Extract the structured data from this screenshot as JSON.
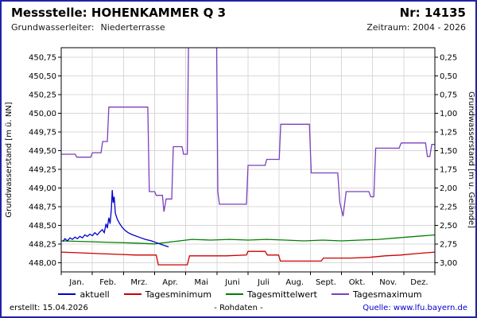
{
  "header": {
    "title": "Messstelle: HOHENKAMMER Q 3",
    "number": "Nr: 14135",
    "aquifer_label": "Grundwasserleiter:",
    "aquifer_value": "Niederterrasse",
    "period": "Zeitraum: 2004 - 2026"
  },
  "footer": {
    "created": "erstellt: 15.04.2026",
    "center": "- Rohdaten -",
    "source": "Quelle: www.lfu.bayern.de"
  },
  "chart_data": {
    "type": "line",
    "title": "Messstelle: HOHENKAMMER Q 3",
    "xlabel": "",
    "ylabel_left": "Grundwasserstand [m ü. NN]",
    "ylabel_right": "Grundwasserstand [m u. Gelände]",
    "x_tick_labels": [
      "Jan.",
      "Feb.",
      "Mrz.",
      "Apr.",
      "Mai",
      "Juni",
      "Juli",
      "Aug.",
      "Sept.",
      "Okt.",
      "Nov.",
      "Dez."
    ],
    "xlim": [
      0,
      12
    ],
    "ylim_left": [
      447.875,
      450.875
    ],
    "yticks_left": [
      448.0,
      448.25,
      448.5,
      448.75,
      449.0,
      449.25,
      449.5,
      449.75,
      450.0,
      450.25,
      450.5,
      450.75
    ],
    "ground_level_m": 451.0,
    "grid": true,
    "legend_position": "bottom",
    "colors": {
      "grid": "#d8d8d8",
      "plot_border": "#000000",
      "frame": "#2222aa",
      "link": "#0000cc"
    },
    "series": [
      {
        "name": "aktuell",
        "color": "#0000cc",
        "points": [
          [
            0.05,
            448.28
          ],
          [
            0.12,
            448.32
          ],
          [
            0.2,
            448.29
          ],
          [
            0.28,
            448.33
          ],
          [
            0.36,
            448.31
          ],
          [
            0.44,
            448.34
          ],
          [
            0.52,
            448.32
          ],
          [
            0.6,
            448.35
          ],
          [
            0.68,
            448.33
          ],
          [
            0.76,
            448.37
          ],
          [
            0.84,
            448.35
          ],
          [
            0.92,
            448.38
          ],
          [
            1.0,
            448.36
          ],
          [
            1.08,
            448.4
          ],
          [
            1.16,
            448.37
          ],
          [
            1.24,
            448.41
          ],
          [
            1.32,
            448.44
          ],
          [
            1.38,
            448.4
          ],
          [
            1.44,
            448.52
          ],
          [
            1.48,
            448.46
          ],
          [
            1.53,
            448.6
          ],
          [
            1.57,
            448.52
          ],
          [
            1.61,
            448.72
          ],
          [
            1.64,
            448.97
          ],
          [
            1.67,
            448.8
          ],
          [
            1.7,
            448.88
          ],
          [
            1.74,
            448.66
          ],
          [
            1.8,
            448.58
          ],
          [
            1.88,
            448.52
          ],
          [
            1.96,
            448.47
          ],
          [
            2.05,
            448.43
          ],
          [
            2.15,
            448.4
          ],
          [
            2.3,
            448.37
          ],
          [
            2.5,
            448.34
          ],
          [
            2.7,
            448.31
          ],
          [
            2.9,
            448.29
          ],
          [
            3.1,
            448.26
          ],
          [
            3.3,
            448.23
          ],
          [
            3.45,
            448.21
          ]
        ]
      },
      {
        "name": "Tagesminimum",
        "color": "#cc0000",
        "points": [
          [
            0,
            448.14
          ],
          [
            0.6,
            448.13
          ],
          [
            1.2,
            448.12
          ],
          [
            1.8,
            448.11
          ],
          [
            2.4,
            448.1
          ],
          [
            3.05,
            448.1
          ],
          [
            3.12,
            447.97
          ],
          [
            4.05,
            447.97
          ],
          [
            4.12,
            448.09
          ],
          [
            5.3,
            448.09
          ],
          [
            5.95,
            448.1
          ],
          [
            6.0,
            448.15
          ],
          [
            6.55,
            448.15
          ],
          [
            6.62,
            448.1
          ],
          [
            6.98,
            448.1
          ],
          [
            7.04,
            448.02
          ],
          [
            8.35,
            448.02
          ],
          [
            8.42,
            448.06
          ],
          [
            9.3,
            448.06
          ],
          [
            9.9,
            448.07
          ],
          [
            10.4,
            448.09
          ],
          [
            10.9,
            448.1
          ],
          [
            11.4,
            448.12
          ],
          [
            12,
            448.14
          ]
        ]
      },
      {
        "name": "Tagesmittelwert",
        "color": "#008000",
        "points": [
          [
            0,
            448.29
          ],
          [
            0.8,
            448.28
          ],
          [
            1.6,
            448.27
          ],
          [
            2.4,
            448.26
          ],
          [
            3.0,
            448.25
          ],
          [
            3.4,
            448.27
          ],
          [
            3.8,
            448.29
          ],
          [
            4.2,
            448.31
          ],
          [
            4.8,
            448.3
          ],
          [
            5.4,
            448.31
          ],
          [
            6.0,
            448.3
          ],
          [
            6.6,
            448.31
          ],
          [
            7.2,
            448.3
          ],
          [
            7.8,
            448.29
          ],
          [
            8.4,
            448.3
          ],
          [
            9.0,
            448.29
          ],
          [
            9.6,
            448.3
          ],
          [
            10.2,
            448.31
          ],
          [
            10.8,
            448.33
          ],
          [
            11.4,
            448.35
          ],
          [
            12,
            448.37
          ]
        ]
      },
      {
        "name": "Tagesmaximum",
        "color": "#7b3fbe",
        "points": [
          [
            0,
            449.45
          ],
          [
            0.45,
            449.45
          ],
          [
            0.5,
            449.41
          ],
          [
            0.95,
            449.41
          ],
          [
            1.0,
            449.47
          ],
          [
            1.28,
            449.47
          ],
          [
            1.33,
            449.62
          ],
          [
            1.48,
            449.62
          ],
          [
            1.53,
            450.08
          ],
          [
            2.78,
            450.08
          ],
          [
            2.83,
            448.95
          ],
          [
            3.0,
            448.95
          ],
          [
            3.05,
            448.9
          ],
          [
            3.25,
            448.9
          ],
          [
            3.3,
            448.68
          ],
          [
            3.37,
            448.85
          ],
          [
            3.55,
            448.85
          ],
          [
            3.6,
            449.55
          ],
          [
            3.88,
            449.55
          ],
          [
            3.93,
            449.45
          ],
          [
            4.05,
            449.45
          ],
          [
            4.1,
            451.4
          ],
          [
            4.98,
            451.4
          ],
          [
            5.03,
            448.95
          ],
          [
            5.08,
            448.78
          ],
          [
            5.95,
            448.78
          ],
          [
            6.0,
            449.3
          ],
          [
            6.55,
            449.3
          ],
          [
            6.6,
            449.38
          ],
          [
            7.0,
            449.38
          ],
          [
            7.05,
            449.85
          ],
          [
            7.97,
            449.85
          ],
          [
            8.03,
            449.2
          ],
          [
            8.88,
            449.2
          ],
          [
            8.95,
            448.8
          ],
          [
            9.05,
            448.62
          ],
          [
            9.15,
            448.95
          ],
          [
            9.88,
            448.95
          ],
          [
            9.94,
            448.88
          ],
          [
            10.04,
            448.88
          ],
          [
            10.1,
            449.53
          ],
          [
            10.85,
            449.53
          ],
          [
            10.92,
            449.6
          ],
          [
            11.7,
            449.6
          ],
          [
            11.76,
            449.42
          ],
          [
            11.84,
            449.42
          ],
          [
            11.9,
            449.58
          ],
          [
            12,
            449.58
          ]
        ]
      }
    ]
  }
}
